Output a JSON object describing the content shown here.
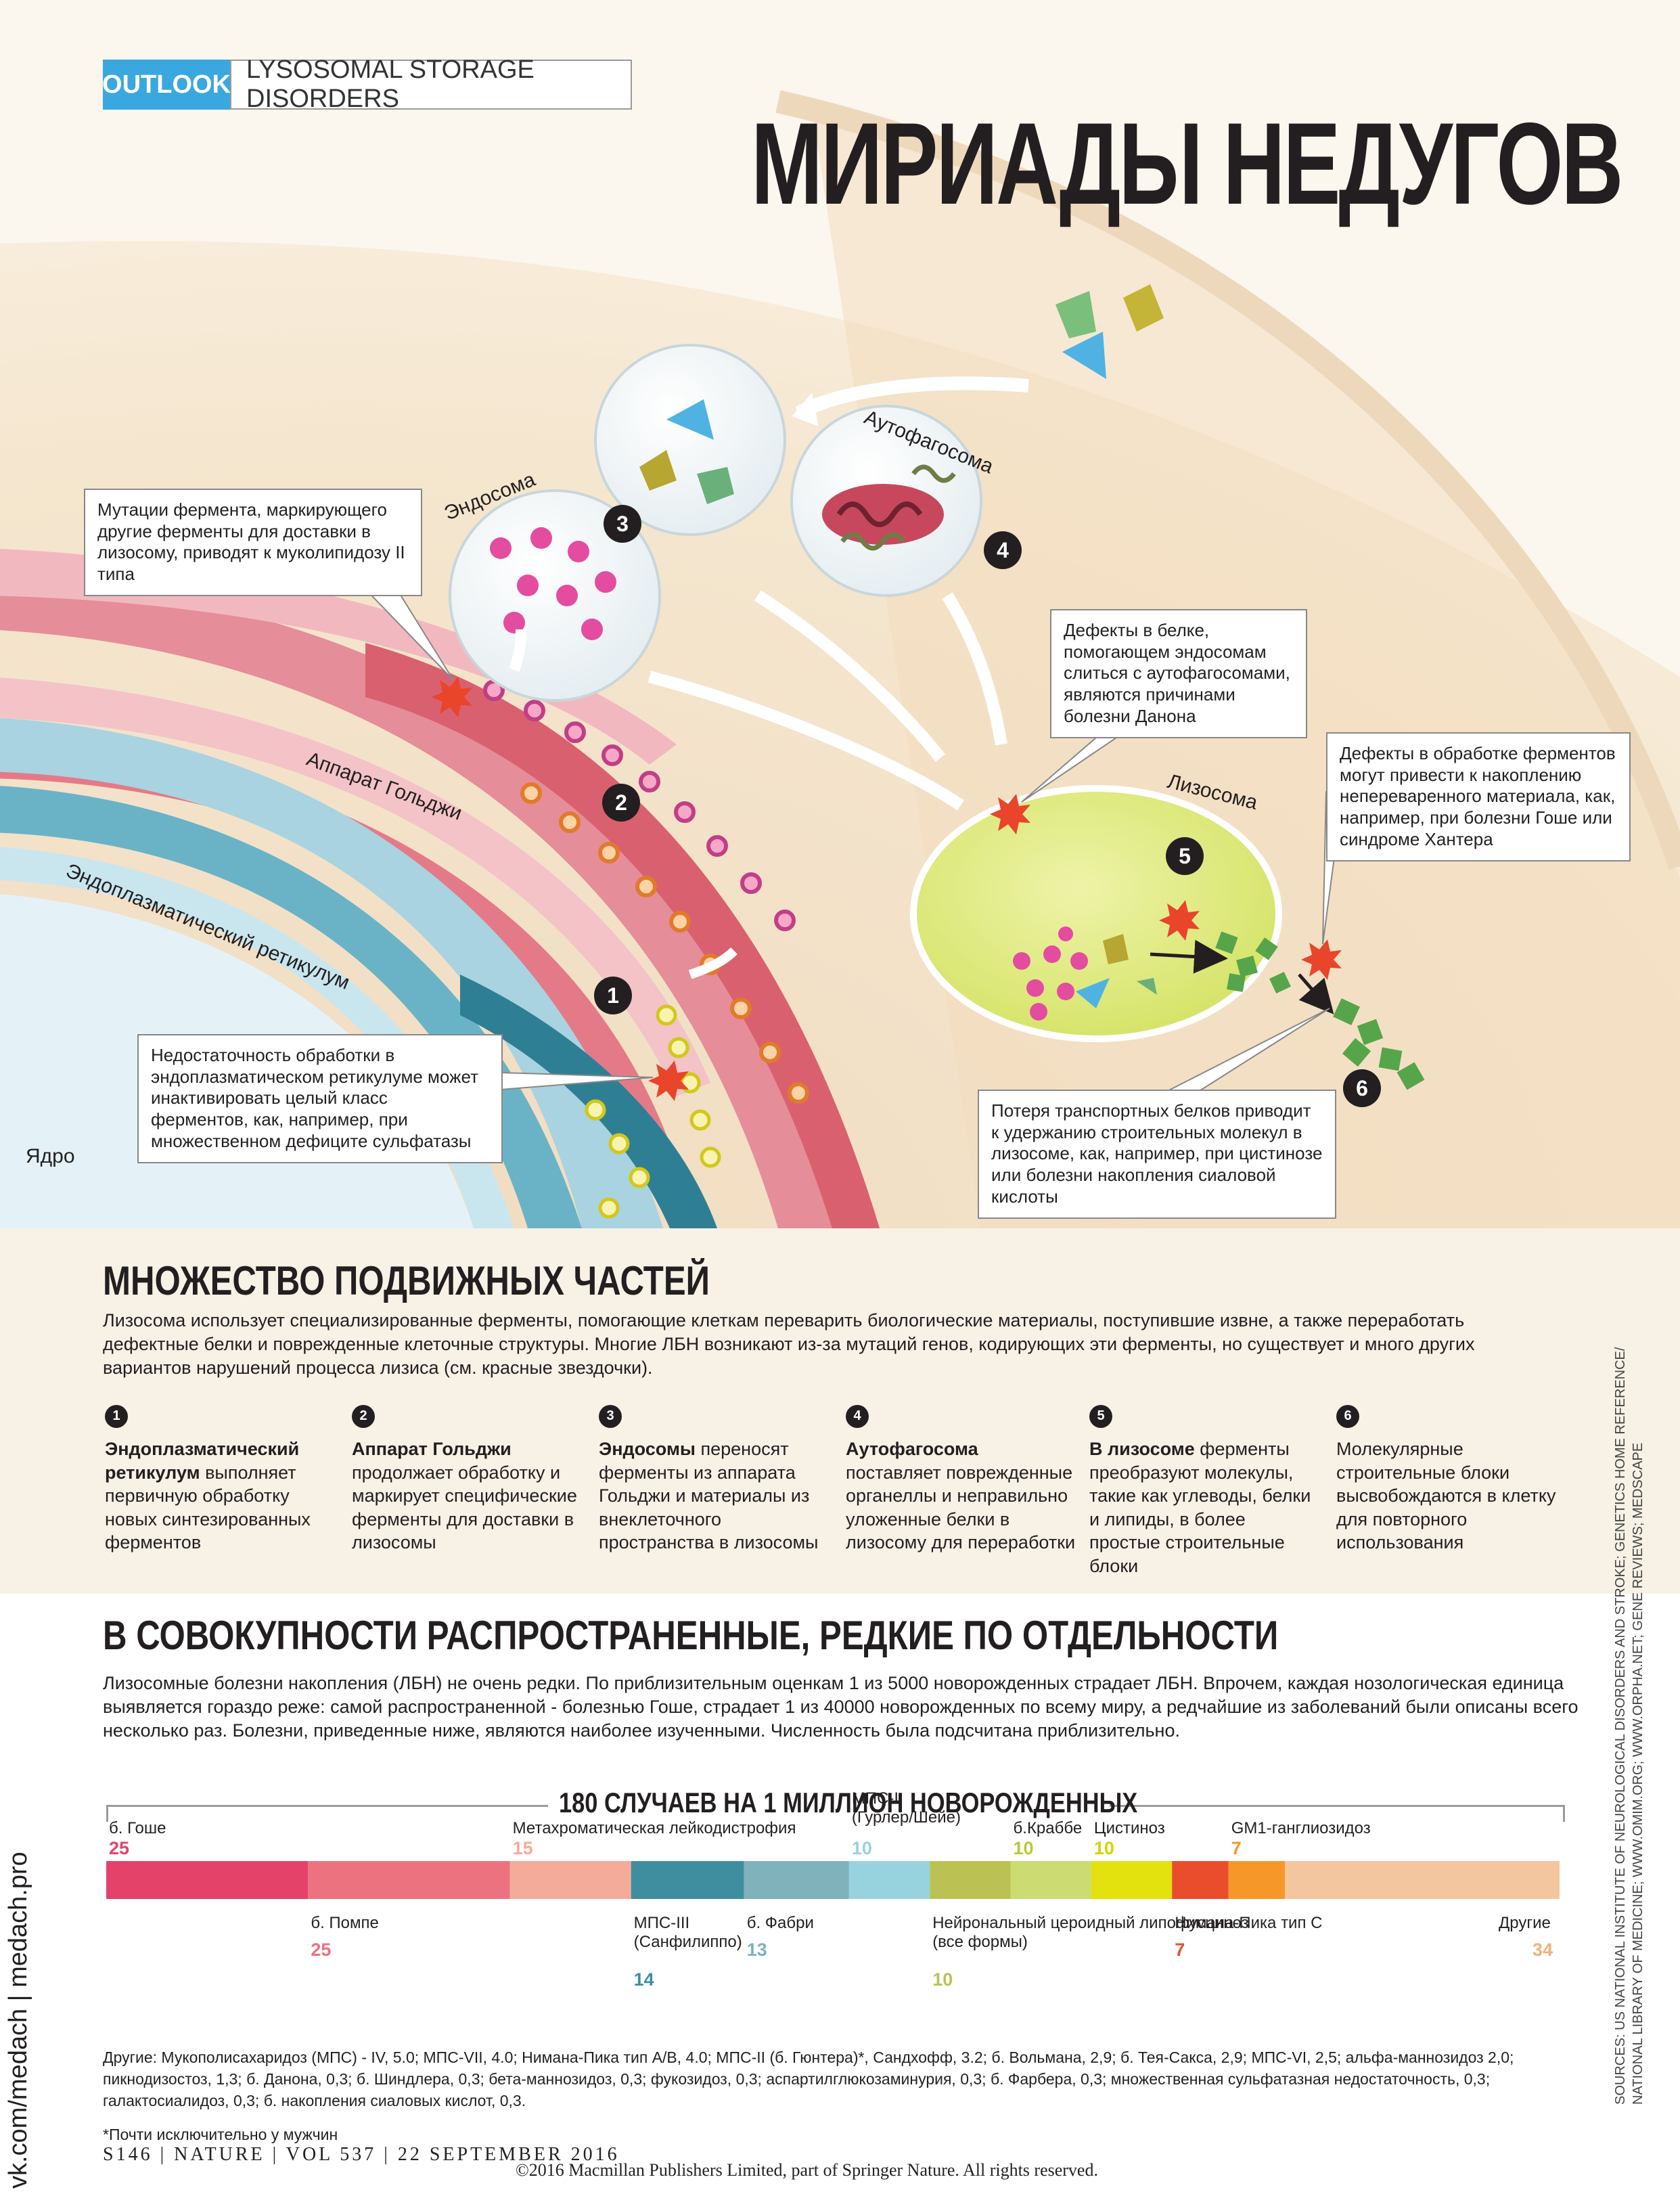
{
  "header": {
    "section": "OUTLOOK",
    "topic": "LYSOSOMAL STORAGE DISORDERS",
    "title": "МИРИАДЫ НЕДУГОВ"
  },
  "diagram": {
    "labels": {
      "endosome": "Эндосома",
      "autophagosome": "Аутофагосома",
      "golgi": "Аппарат Гольджи",
      "er": "Эндоплазматический ретикулум",
      "lysosome": "Лизосома",
      "nucleus": "Ядро"
    },
    "badges": [
      "1",
      "2",
      "3",
      "4",
      "5",
      "6"
    ],
    "callouts": {
      "enzyme_marker": "Мутации фермента, маркирующего другие ферменты для доставки в лизосому, приводят к муколипидозу II типа",
      "danon": "Дефекты в белке, помогающем эндосомам слиться с аутофагосомами, являются причинами болезни Данона",
      "processing": "Дефекты в обработке ферментов могут привести к накоплению непереваренного материала, как, например, при болезни Гоше или синдроме Хантера",
      "er_processing": "Недостаточность обработки в эндоплазматическом ретикулуме может инактивировать целый класс ферментов, как, например, при множественном дефиците сульфатазы",
      "transport": "Потеря транспортных белков приводит к удержанию строительных молекул в лизосоме, как, например, при цистинозе или болезни накопления сиаловой кислоты"
    }
  },
  "moving_parts": {
    "heading": "МНОЖЕСТВО ПОДВИЖНЫХ ЧАСТЕЙ",
    "text": "Лизосома использует специализированные ферменты, помогающие клеткам переварить биологические материалы, поступившие извне, а также переработать дефектные белки и поврежденные клеточные структуры. Многие ЛБН возникают из-за мутаций генов, кодирующих эти ферменты, но существует и много других вариантов нарушений процесса лизиса (см. красные звездочки).",
    "steps": [
      {
        "num": "1",
        "bold": "Эндоплазматический ретикулум",
        "text": " выполняет первичную обработку новых синтезированных ферментов"
      },
      {
        "num": "2",
        "bold": "Аппарат Гольджи",
        "text": " продолжает обработку и маркирует специфические ферменты для доставки в лизосомы"
      },
      {
        "num": "3",
        "bold": "Эндосомы",
        "text": " переносят ферменты из аппарата Гольджи и материалы из внеклеточного пространства в лизосомы"
      },
      {
        "num": "4",
        "bold": "Аутофагосома",
        "text": " поставляет поврежденные органеллы и неправильно уложенные белки в лизосому для переработки"
      },
      {
        "num": "5",
        "bold": "В лизосоме",
        "text": " ферменты преобразуют молекулы, такие как углеводы, белки и липиды, в более простые строительные блоки"
      },
      {
        "num": "6",
        "bold": "",
        "text": "Молекулярные строительные блоки высвобождаются в клетку для повторного использования"
      }
    ]
  },
  "rare": {
    "heading": "В СОВОКУПНОСТИ РАСПРОСТРАНЕННЫЕ, РЕДКИЕ ПО ОТДЕЛЬНОСТИ",
    "text": "Лизосомные болезни накопления (ЛБН) не очень редки. По приблизительным оценкам 1 из 5000 новорожденных страдает ЛБН. Впрочем, каждая нозологическая единица выявляется гораздо реже: самой распространенной - болезнью Гоше, страдает 1 из 40000 новорожденных по всему миру, а редчайшие из заболеваний были описаны всего несколько раз. Болезни, приведенные ниже, являются наиболее изученными. Численность была подсчитана приблизительно."
  },
  "chart_data": {
    "type": "bar",
    "title": "180 СЛУЧАЕВ НА 1 МИЛЛИОН НОВОРОЖДЕННЫХ",
    "total": 180,
    "orientation": "stacked-horizontal",
    "segments": [
      {
        "name": "б. Гоше",
        "value": 25,
        "color": "#e5426a",
        "label_pos": "above"
      },
      {
        "name": "б. Помпе",
        "value": 25,
        "color": "#ec7280",
        "label_pos": "below"
      },
      {
        "name": "Метахроматическая лейкодистрофия",
        "value": 15,
        "color": "#f4ab9a",
        "label_pos": "above"
      },
      {
        "name": "МПС-III (Санфилиппо)",
        "value": 14,
        "color": "#3f8ea0",
        "label_pos": "below"
      },
      {
        "name": "б. Фабри",
        "value": 13,
        "color": "#7fb2bb",
        "label_pos": "below"
      },
      {
        "name": "МПС-I (Гурлер/Шейе)",
        "value": 10,
        "color": "#97d3de",
        "label_pos": "above"
      },
      {
        "name": "Нейрональный цероидный липофусциноз (все формы)",
        "value": 10,
        "color": "#bbc253",
        "label_pos": "below"
      },
      {
        "name": "б.Краббе",
        "value": 10,
        "color": "#ccdb72",
        "label_pos": "above"
      },
      {
        "name": "Цистиноз",
        "value": 10,
        "color": "#e3e10e",
        "label_pos": "above"
      },
      {
        "name": "Нимана-Пика тип С",
        "value": 7,
        "color": "#e94d2b",
        "label_pos": "below"
      },
      {
        "name": "GM1-ганглиозидоз",
        "value": 7,
        "color": "#f6972a",
        "label_pos": "above"
      },
      {
        "name": "Другие",
        "value": 34,
        "color": "#f3c6a0",
        "label_pos": "below"
      }
    ],
    "value_colors": [
      "#e5426a",
      "#ec7280",
      "#f4ab9a",
      "#3f8ea0",
      "#7fb2bb",
      "#97d3de",
      "#bbc253",
      "#b8c83a",
      "#d8d000",
      "#e94d2b",
      "#f6972a",
      "#f0b07a"
    ]
  },
  "footnotes": {
    "others": "Другие: Мукополисахаридоз (МПС) - IV, 5.0; МПС-VII, 4.0; Нимана-Пика тип A/B, 4.0; МПС-II (б. Гюнтера)*, Сандхофф, 3.2; б. Вольмана, 2,9; б. Тея-Сакса, 2,9; МПС-VI, 2,5; альфа-маннозидоз 2,0; пикнодизостоз, 1,3; б. Данона, 0,3; б. Шиндлера, 0,3; бета-маннозидоз, 0,3; фукозидоз, 0,3; аспартилглюкозаминурия, 0,3; б. Фарбера, 0,3; множественная сульфатазная недостаточность, 0,3; галактосиалидоз, 0,3; б. накопления сиаловых кислот, 0,3.",
    "male_only": "*Почти исключительно у мужчин",
    "folio": "S146 | NATURE | VOL 537 | 22 SEPTEMBER 2016",
    "copyright": "©2016 Macmillan Publishers Limited, part of Springer Nature. All rights reserved.",
    "sources_1": "SOURCES: US NATIONAL INSTITUTE OF NEUROLOGICAL DISORDERS AND STROKE; GENETICS HOME REFERENCE/",
    "sources_2": "NATIONAL LIBRARY OF MEDICINE; WWW.OMIM.ORG; WWW.ORPHA.NET; GENE REVIEWS; MEDSCAPE",
    "watermark": "vk.com/medach | medach.pro"
  }
}
